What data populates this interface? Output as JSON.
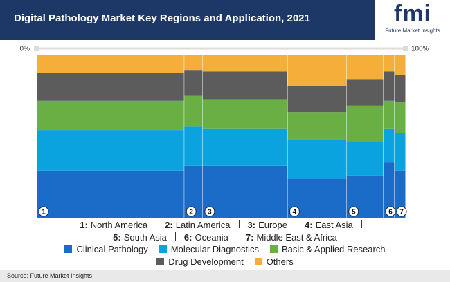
{
  "header": {
    "title": "Digital Pathology Market Key Regions and Application, 2021"
  },
  "logo": {
    "mark": "fmi",
    "name": "Future Market Insights"
  },
  "chart_data": {
    "type": "marimekko",
    "keys": [
      "1",
      "2",
      "3",
      "4",
      "5",
      "6",
      "7"
    ],
    "categories": [
      "North America",
      "Latin America",
      "Europe",
      "East Asia",
      "South Asia",
      "Oceania",
      "Middle East & Africa"
    ],
    "widths": [
      40,
      5,
      23,
      16,
      10,
      3,
      3
    ],
    "xlim": [
      0,
      100
    ],
    "xticks": [
      {
        "value": 0,
        "label": "0%"
      },
      {
        "value": 100,
        "label": "100%"
      }
    ],
    "ylim": [
      0,
      100
    ],
    "series": [
      {
        "name": "Clinical Pathology",
        "color": "#1b6cc8",
        "values": [
          29,
          32,
          32,
          24,
          26,
          34,
          29
        ]
      },
      {
        "name": "Molecular Diagnostics",
        "color": "#0aa3e0",
        "values": [
          25,
          24,
          23,
          24,
          21,
          21,
          23
        ]
      },
      {
        "name": "Basic & Applied Research",
        "color": "#6aaf44",
        "values": [
          18,
          19,
          18,
          17,
          22,
          17,
          19
        ]
      },
      {
        "name": "Drug Development",
        "color": "#5c5c5c",
        "values": [
          17,
          16,
          17,
          16,
          16,
          18,
          17
        ]
      },
      {
        "name": "Others",
        "color": "#f6ae3b",
        "values": [
          11,
          9,
          10,
          19,
          15,
          10,
          12
        ]
      }
    ]
  },
  "source": "Source: Future Market Insights"
}
